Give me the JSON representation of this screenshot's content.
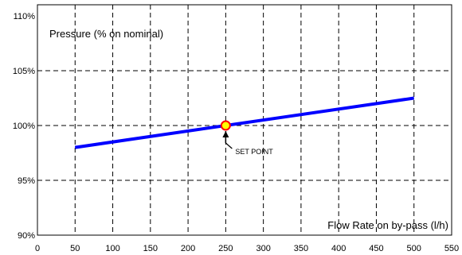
{
  "chart_data": {
    "type": "line",
    "title": "",
    "ylabel": "Pressure (% on nominal)",
    "xlabel": "Flow Rate on by-pass (l/h)",
    "xlim": [
      0,
      550
    ],
    "ylim": [
      90,
      110
    ],
    "x_ticks": [
      "0",
      "50",
      "100",
      "150",
      "200",
      "250",
      "300",
      "350",
      "400",
      "450",
      "500",
      "550"
    ],
    "y_ticks": [
      "90%",
      "95%",
      "100%",
      "105%",
      "110%"
    ],
    "x_tick_values": [
      0,
      50,
      100,
      150,
      200,
      250,
      300,
      350,
      400,
      450,
      500,
      550
    ],
    "y_tick_values": [
      90,
      95,
      100,
      105,
      110
    ],
    "grid": true,
    "series": [
      {
        "x": [
          50,
          500
        ],
        "y": [
          98,
          102.5
        ],
        "color": "#0000ff"
      }
    ],
    "set_point": {
      "x": 250,
      "y": 100,
      "label": "SET POINT",
      "fill": "#ffff00",
      "stroke": "#ff0000"
    }
  }
}
